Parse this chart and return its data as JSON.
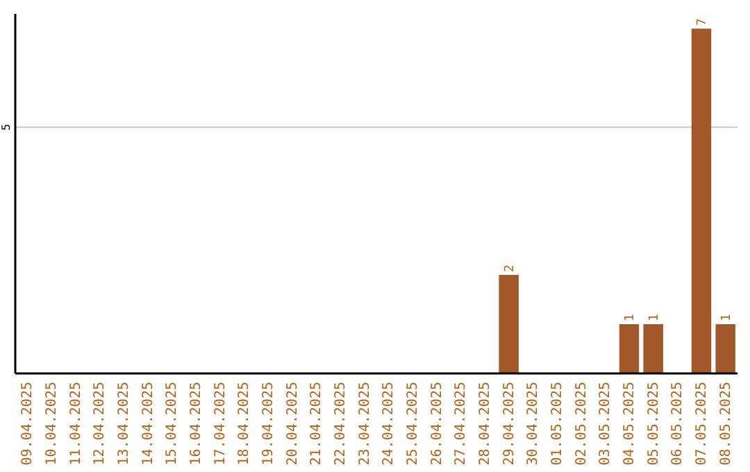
{
  "chart_data": {
    "type": "bar",
    "categories": [
      "09.04.2025",
      "10.04.2025",
      "11.04.2025",
      "12.04.2025",
      "13.04.2025",
      "14.04.2025",
      "15.04.2025",
      "16.04.2025",
      "17.04.2025",
      "18.04.2025",
      "19.04.2025",
      "20.04.2025",
      "21.04.2025",
      "22.04.2025",
      "23.04.2025",
      "24.04.2025",
      "25.04.2025",
      "26.04.2025",
      "27.04.2025",
      "28.04.2025",
      "29.04.2025",
      "30.04.2025",
      "01.05.2025",
      "02.05.2025",
      "03.05.2025",
      "04.05.2025",
      "05.05.2025",
      "06.05.2025",
      "07.05.2025",
      "08.05.2025"
    ],
    "values": [
      null,
      null,
      null,
      null,
      null,
      null,
      null,
      null,
      null,
      null,
      null,
      null,
      null,
      null,
      null,
      null,
      null,
      null,
      null,
      null,
      2,
      null,
      null,
      null,
      null,
      1,
      1,
      null,
      7,
      1
    ],
    "data_labels": true,
    "color": "#a0572a",
    "ylim": [
      0,
      7.3
    ],
    "yticks": [
      5
    ],
    "grid": "y"
  }
}
